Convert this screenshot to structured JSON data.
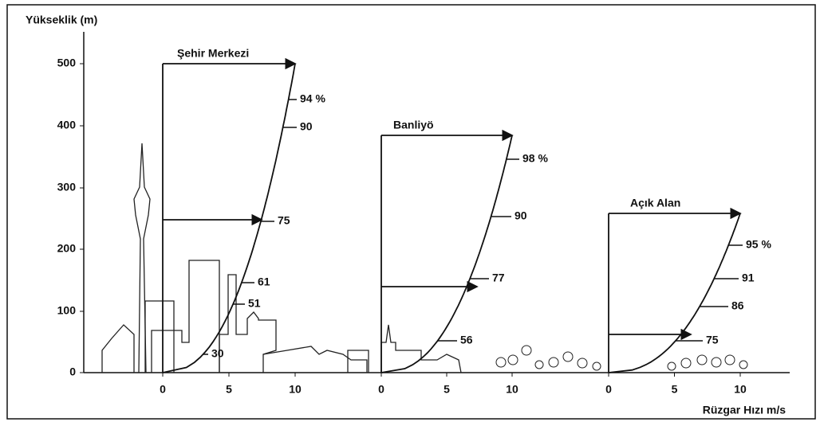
{
  "y_axis": {
    "label": "Yükseklik (m)",
    "ticks": [
      "500",
      "400",
      "300",
      "200",
      "100",
      "0"
    ]
  },
  "x_axis": {
    "label": "Rüzgar Hızı m/s"
  },
  "panels": [
    {
      "title": "Şehir Merkezi",
      "ticks": [
        "0",
        "5",
        "10"
      ],
      "labels": [
        "94 %",
        "90",
        "75",
        "61",
        "51",
        "30"
      ]
    },
    {
      "title": "Banliyö",
      "ticks": [
        "0",
        "5",
        "10"
      ],
      "labels": [
        "98 %",
        "90",
        "77",
        "56"
      ]
    },
    {
      "title": "Açık Alan",
      "ticks": [
        "0",
        "5",
        "10"
      ],
      "labels": [
        "95 %",
        "91",
        "86",
        "75"
      ]
    }
  ]
}
